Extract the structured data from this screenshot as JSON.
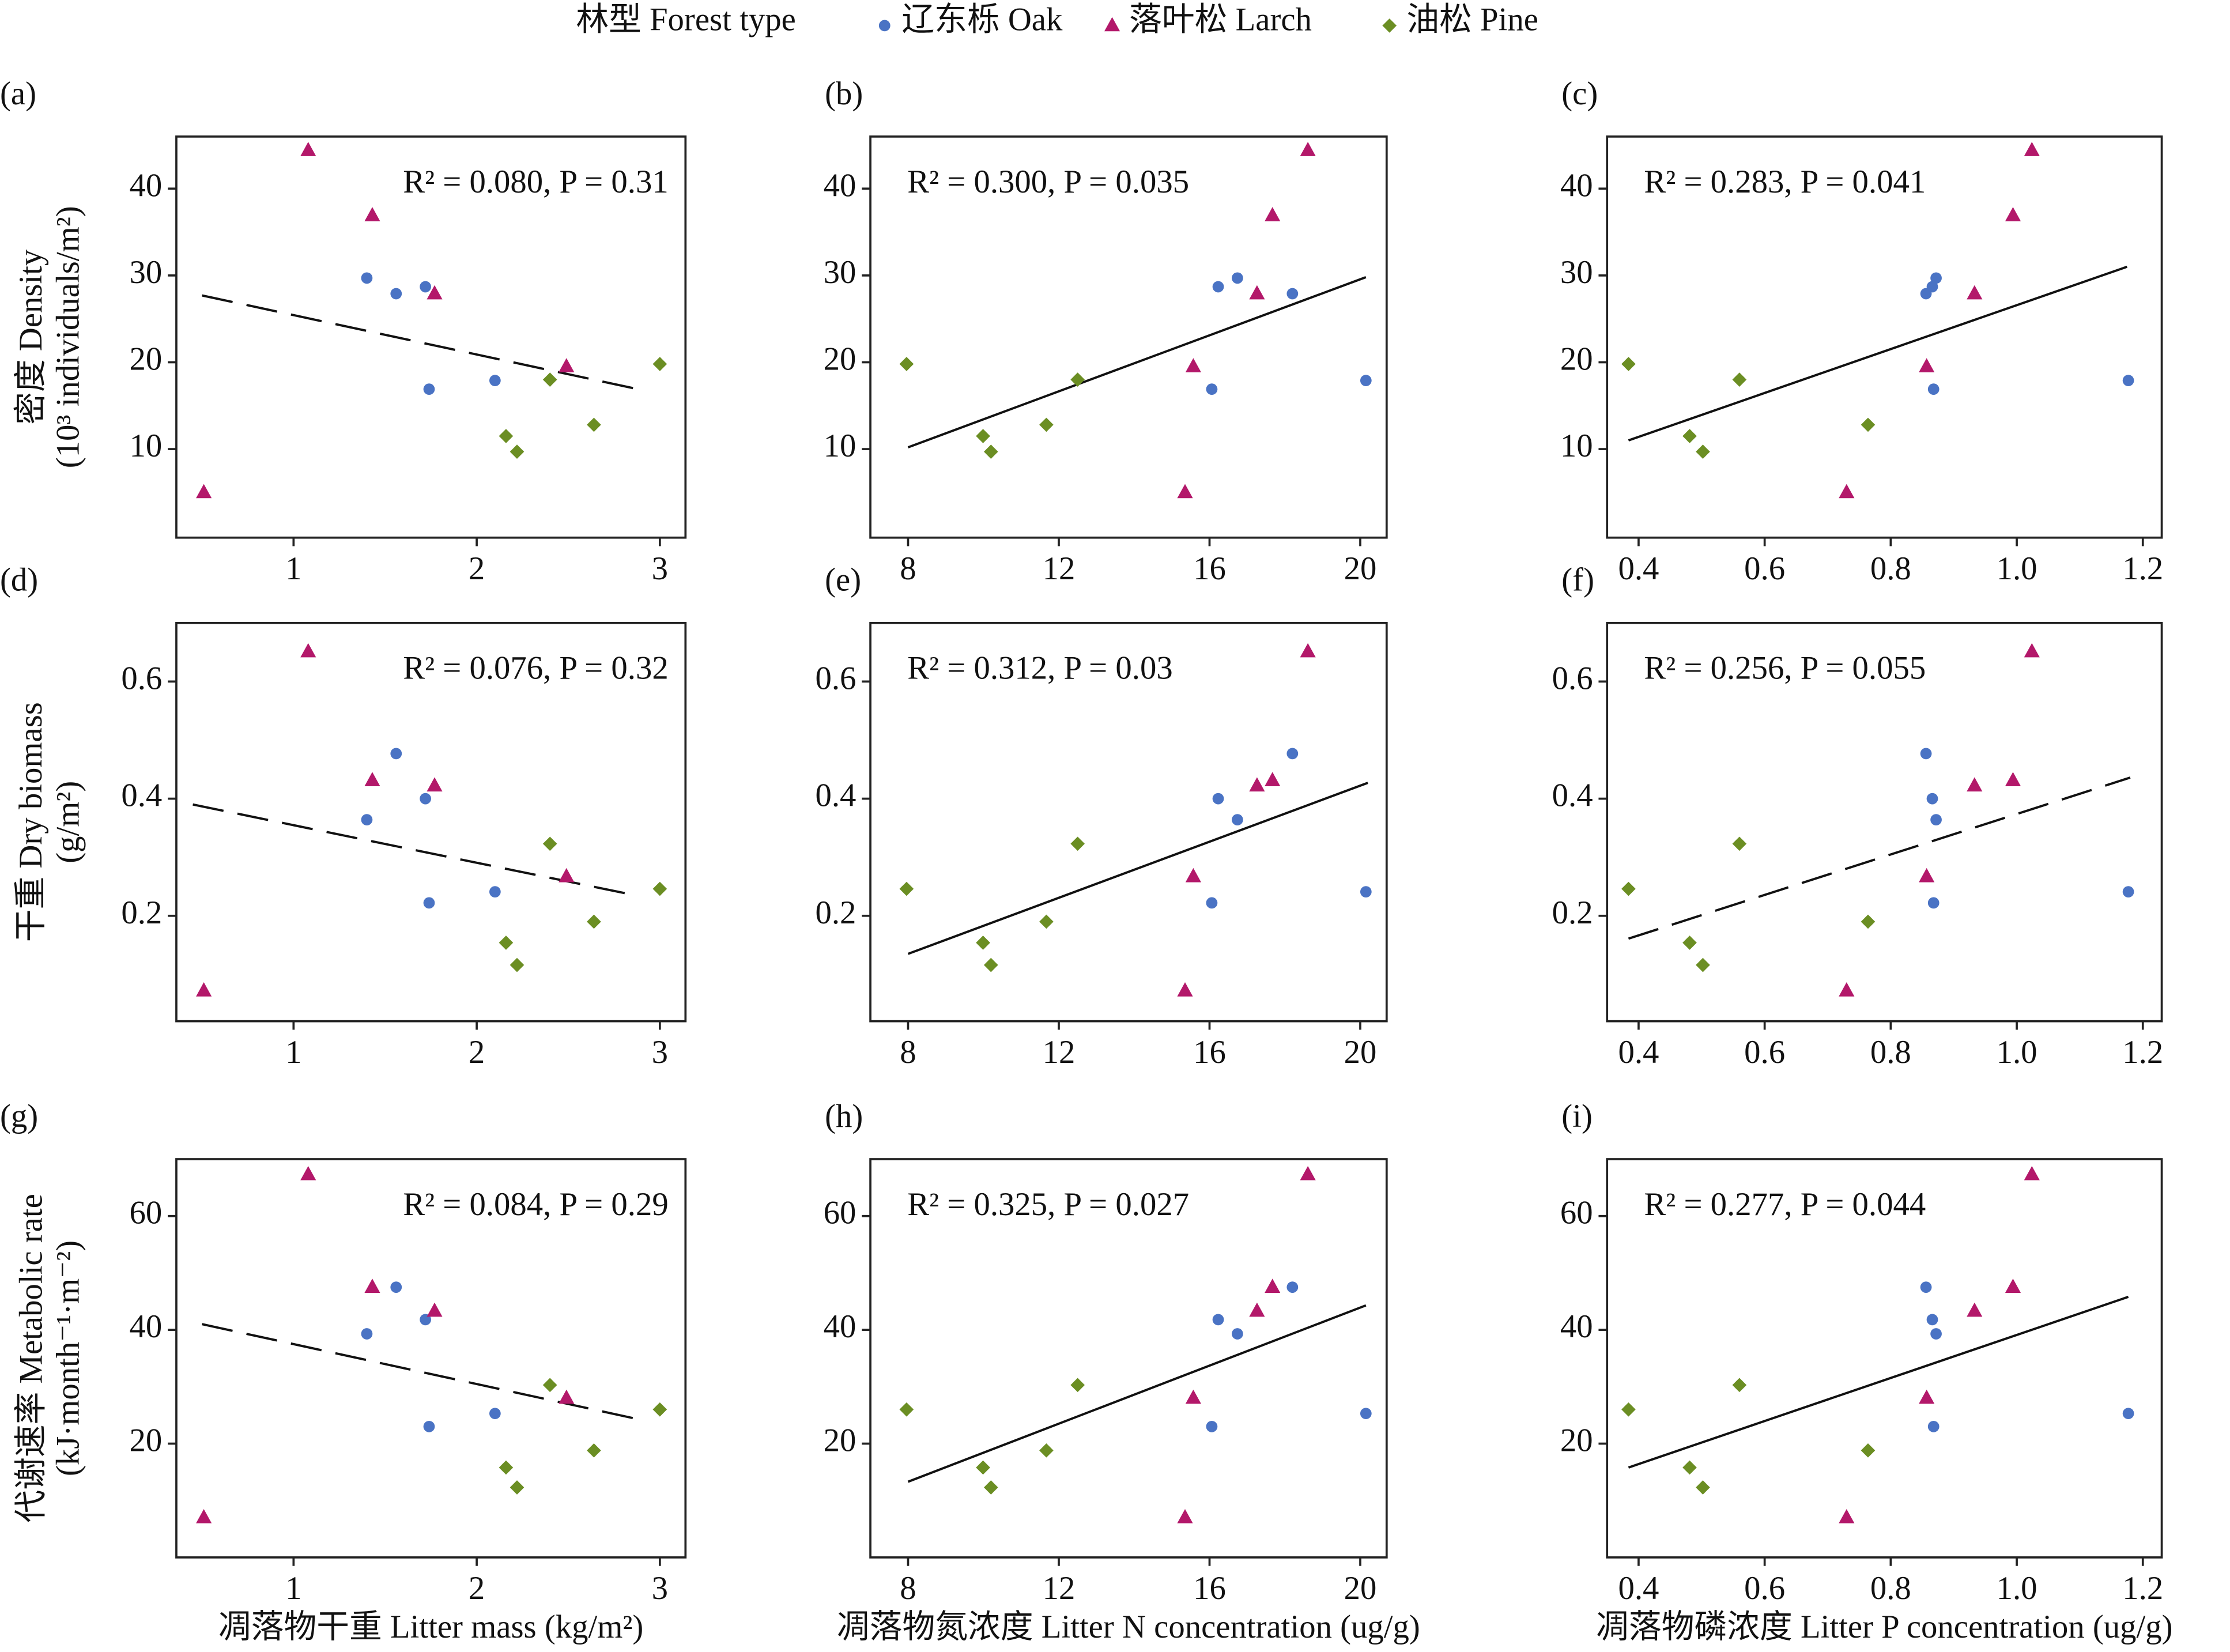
{
  "chart_data": [
    {
      "type": "scatter",
      "panel": "(a)",
      "legend_title": "林型 Forest type",
      "annotation": "R² = 0.080, P = 0.31",
      "ylabel": [
        "密度 Density",
        "(10³ individuals/m²)"
      ],
      "xlim": [
        0.36,
        3.14
      ],
      "ylim": [
        -0.2,
        46
      ],
      "xticks": [
        1,
        2,
        3
      ],
      "yticks": [
        10,
        20,
        30,
        40
      ],
      "series": [
        {
          "name": "辽东栎 Oak",
          "color": "#4a73c4",
          "marker": "circle",
          "x": [
            1.4,
            1.56,
            1.72,
            1.74,
            2.1
          ],
          "values": [
            29.7,
            27.9,
            28.7,
            16.9,
            17.9
          ]
        },
        {
          "name": "落叶松 Larch",
          "color": "#b3186a",
          "marker": "triangle",
          "x": [
            1.08,
            1.43,
            1.77,
            2.49,
            0.51
          ],
          "values": [
            44.4,
            36.9,
            27.9,
            19.5,
            5.0
          ]
        },
        {
          "name": "油松 Pine",
          "color": "#6b8e23",
          "marker": "diamond",
          "x": [
            3.0,
            2.4,
            2.16,
            2.22,
            2.64
          ],
          "values": [
            19.8,
            18.0,
            11.5,
            9.7,
            12.8
          ]
        }
      ],
      "fit": {
        "x": [
          0.5,
          2.88
        ],
        "y": [
          27.7,
          16.9
        ],
        "dashed": true
      }
    },
    {
      "type": "scatter",
      "panel": "(b)",
      "annotation": "R² = 0.300, P = 0.035",
      "xlim": [
        7.0,
        20.7
      ],
      "ylim": [
        -0.2,
        46
      ],
      "xticks": [
        8,
        12,
        16,
        20
      ],
      "yticks": [
        10,
        20,
        30,
        40
      ],
      "series": [
        {
          "name": "辽东栎 Oak",
          "color": "#4a73c4",
          "marker": "circle",
          "x": [
            16.74,
            18.2,
            16.23,
            16.06,
            20.15
          ],
          "values": [
            29.7,
            27.9,
            28.7,
            16.9,
            17.9
          ]
        },
        {
          "name": "落叶松 Larch",
          "color": "#b3186a",
          "marker": "triangle",
          "x": [
            18.61,
            17.67,
            17.26,
            15.57,
            15.35
          ],
          "values": [
            44.4,
            36.9,
            27.9,
            19.5,
            5.0
          ]
        },
        {
          "name": "油松 Pine",
          "color": "#6b8e23",
          "marker": "diamond",
          "x": [
            7.96,
            12.5,
            9.99,
            10.2,
            11.67
          ],
          "values": [
            19.8,
            18.0,
            11.5,
            9.7,
            12.8
          ]
        }
      ],
      "fit": {
        "x": [
          8.0,
          20.15
        ],
        "y": [
          10.2,
          29.8
        ],
        "dashed": false
      }
    },
    {
      "type": "scatter",
      "panel": "(c)",
      "annotation": "R² = 0.283, P = 0.041",
      "xlim": [
        0.35,
        1.23
      ],
      "ylim": [
        -0.2,
        46
      ],
      "xticks": [
        0.4,
        0.6,
        0.8,
        {
          "value": 1.0,
          "label": "1.0"
        },
        1.2
      ],
      "yticks": [
        10,
        20,
        30,
        40
      ],
      "series": [
        {
          "name": "辽东栎 Oak",
          "color": "#4a73c4",
          "marker": "circle",
          "x": [
            0.872,
            0.856,
            0.866,
            0.868,
            1.177
          ],
          "values": [
            29.7,
            27.9,
            28.7,
            16.9,
            17.9
          ]
        },
        {
          "name": "落叶松 Larch",
          "color": "#b3186a",
          "marker": "triangle",
          "x": [
            1.024,
            0.994,
            0.933,
            0.857,
            0.73
          ],
          "values": [
            44.4,
            36.9,
            27.9,
            19.5,
            5.0
          ]
        },
        {
          "name": "油松 Pine",
          "color": "#6b8e23",
          "marker": "diamond",
          "x": [
            0.384,
            0.56,
            0.481,
            0.502,
            0.764
          ],
          "values": [
            19.8,
            18.0,
            11.5,
            9.7,
            12.8
          ]
        }
      ],
      "fit": {
        "x": [
          0.384,
          1.175
        ],
        "y": [
          11.0,
          31.0
        ],
        "dashed": false
      }
    },
    {
      "type": "scatter",
      "panel": "(d)",
      "annotation": "R² = 0.076, P = 0.32",
      "ylabel": [
        "干重 Dry biomass",
        "(g/m²)"
      ],
      "xlim": [
        0.36,
        3.14
      ],
      "ylim": [
        0.02,
        0.7
      ],
      "xticks": [
        1,
        2,
        3
      ],
      "yticks": [
        0.2,
        0.4,
        0.6
      ],
      "series": [
        {
          "name": "辽东栎 Oak",
          "color": "#4a73c4",
          "marker": "circle",
          "x": [
            1.4,
            1.56,
            1.72,
            1.74,
            2.1
          ],
          "values": [
            0.364,
            0.477,
            0.4,
            0.222,
            0.241
          ]
        },
        {
          "name": "落叶松 Larch",
          "color": "#b3186a",
          "marker": "triangle",
          "x": [
            1.08,
            1.43,
            1.77,
            2.49,
            0.51
          ],
          "values": [
            0.651,
            0.431,
            0.422,
            0.267,
            0.072
          ]
        },
        {
          "name": "油松 Pine",
          "color": "#6b8e23",
          "marker": "diamond",
          "x": [
            3.0,
            2.4,
            2.16,
            2.22,
            2.64
          ],
          "values": [
            0.246,
            0.323,
            0.154,
            0.116,
            0.19
          ]
        }
      ],
      "fit": {
        "x": [
          0.45,
          2.85
        ],
        "y": [
          0.39,
          0.236
        ],
        "dashed": true
      }
    },
    {
      "type": "scatter",
      "panel": "(e)",
      "annotation": "R² = 0.312, P = 0.03",
      "xlim": [
        7.0,
        20.7
      ],
      "ylim": [
        0.02,
        0.7
      ],
      "xticks": [
        8,
        12,
        16,
        20
      ],
      "yticks": [
        0.2,
        0.4,
        0.6
      ],
      "series": [
        {
          "name": "辽东栎 Oak",
          "color": "#4a73c4",
          "marker": "circle",
          "x": [
            16.74,
            18.2,
            16.23,
            16.06,
            20.15
          ],
          "values": [
            0.364,
            0.477,
            0.4,
            0.222,
            0.241
          ]
        },
        {
          "name": "落叶松 Larch",
          "color": "#b3186a",
          "marker": "triangle",
          "x": [
            18.61,
            17.67,
            17.26,
            15.57,
            15.35
          ],
          "values": [
            0.651,
            0.431,
            0.422,
            0.267,
            0.072
          ]
        },
        {
          "name": "油松 Pine",
          "color": "#6b8e23",
          "marker": "diamond",
          "x": [
            7.96,
            12.5,
            9.99,
            10.2,
            11.67
          ],
          "values": [
            0.246,
            0.323,
            0.154,
            0.116,
            0.19
          ]
        }
      ],
      "fit": {
        "x": [
          8.0,
          20.2
        ],
        "y": [
          0.135,
          0.427
        ],
        "dashed": false
      }
    },
    {
      "type": "scatter",
      "panel": "(f)",
      "annotation": "R² = 0.256, P = 0.055",
      "xlim": [
        0.35,
        1.23
      ],
      "ylim": [
        0.02,
        0.7
      ],
      "xticks": [
        0.4,
        0.6,
        0.8,
        {
          "value": 1.0,
          "label": "1.0"
        },
        1.2
      ],
      "yticks": [
        0.2,
        0.4,
        0.6
      ],
      "series": [
        {
          "name": "辽东栎 Oak",
          "color": "#4a73c4",
          "marker": "circle",
          "x": [
            0.872,
            0.856,
            0.866,
            0.868,
            1.177
          ],
          "values": [
            0.364,
            0.477,
            0.4,
            0.222,
            0.241
          ]
        },
        {
          "name": "落叶松 Larch",
          "color": "#b3186a",
          "marker": "triangle",
          "x": [
            1.024,
            0.994,
            0.933,
            0.857,
            0.73
          ],
          "values": [
            0.651,
            0.431,
            0.422,
            0.267,
            0.072
          ]
        },
        {
          "name": "油松 Pine",
          "color": "#6b8e23",
          "marker": "diamond",
          "x": [
            0.384,
            0.56,
            0.481,
            0.502,
            0.764
          ],
          "values": [
            0.246,
            0.323,
            0.154,
            0.116,
            0.19
          ]
        }
      ],
      "fit": {
        "x": [
          0.384,
          1.18
        ],
        "y": [
          0.161,
          0.436
        ],
        "dashed": true
      }
    },
    {
      "type": "scatter",
      "panel": "(g)",
      "annotation": "R² = 0.084, P = 0.29",
      "ylabel": [
        "代谢速率 Metabolic rate",
        "(kJ·month⁻¹·m⁻²)"
      ],
      "xlabel": "凋落物干重 Litter mass (kg/m²)",
      "xlim": [
        0.36,
        3.14
      ],
      "ylim": [
        0,
        70
      ],
      "xticks": [
        1,
        2,
        3
      ],
      "yticks": [
        20,
        40,
        60
      ],
      "series": [
        {
          "name": "辽东栎 Oak",
          "color": "#4a73c4",
          "marker": "circle",
          "x": [
            1.4,
            1.56,
            1.72,
            1.74,
            2.1
          ],
          "values": [
            39.3,
            47.5,
            41.8,
            23.0,
            25.3
          ]
        },
        {
          "name": "落叶松 Larch",
          "color": "#b3186a",
          "marker": "triangle",
          "x": [
            1.08,
            1.43,
            1.77,
            2.49,
            0.51
          ],
          "values": [
            67.3,
            47.5,
            43.3,
            28.0,
            7.0
          ]
        },
        {
          "name": "油松 Pine",
          "color": "#6b8e23",
          "marker": "diamond",
          "x": [
            3.0,
            2.4,
            2.16,
            2.22,
            2.64
          ],
          "values": [
            26.0,
            30.3,
            15.8,
            12.3,
            18.8
          ]
        }
      ],
      "fit": {
        "x": [
          0.5,
          2.88
        ],
        "y": [
          41.0,
          24.3
        ],
        "dashed": true
      }
    },
    {
      "type": "scatter",
      "panel": "(h)",
      "annotation": "R² = 0.325, P = 0.027",
      "xlabel": "凋落物氮浓度 Litter N concentration (ug/g)",
      "xlim": [
        7.0,
        20.7
      ],
      "ylim": [
        0,
        70
      ],
      "xticks": [
        8,
        12,
        16,
        20
      ],
      "yticks": [
        20,
        40,
        60
      ],
      "series": [
        {
          "name": "辽东栎 Oak",
          "color": "#4a73c4",
          "marker": "circle",
          "x": [
            16.74,
            18.2,
            16.23,
            16.06,
            20.15
          ],
          "values": [
            39.3,
            47.5,
            41.8,
            23.0,
            25.3
          ]
        },
        {
          "name": "落叶松 Larch",
          "color": "#b3186a",
          "marker": "triangle",
          "x": [
            18.61,
            17.67,
            17.26,
            15.57,
            15.35
          ],
          "values": [
            67.3,
            47.5,
            43.3,
            28.0,
            7.0
          ]
        },
        {
          "name": "油松 Pine",
          "color": "#6b8e23",
          "marker": "diamond",
          "x": [
            7.96,
            12.5,
            9.99,
            10.2,
            11.67
          ],
          "values": [
            26.0,
            30.3,
            15.8,
            12.3,
            18.8
          ]
        }
      ],
      "fit": {
        "x": [
          8.0,
          20.15
        ],
        "y": [
          13.3,
          44.3
        ],
        "dashed": false
      }
    },
    {
      "type": "scatter",
      "panel": "(i)",
      "annotation": "R² = 0.277, P = 0.044",
      "xlabel": "凋落物磷浓度 Litter P concentration (ug/g)",
      "xlim": [
        0.35,
        1.23
      ],
      "ylim": [
        0,
        70
      ],
      "xticks": [
        0.4,
        0.6,
        0.8,
        {
          "value": 1.0,
          "label": "1.0"
        },
        1.2
      ],
      "yticks": [
        20,
        40,
        60
      ],
      "series": [
        {
          "name": "辽东栎 Oak",
          "color": "#4a73c4",
          "marker": "circle",
          "x": [
            0.872,
            0.856,
            0.866,
            0.868,
            1.177
          ],
          "values": [
            39.3,
            47.5,
            41.8,
            23.0,
            25.3
          ]
        },
        {
          "name": "落叶松 Larch",
          "color": "#b3186a",
          "marker": "triangle",
          "x": [
            1.024,
            0.994,
            0.933,
            0.857,
            0.73
          ],
          "values": [
            67.3,
            47.5,
            43.3,
            28.0,
            7.0
          ]
        },
        {
          "name": "油松 Pine",
          "color": "#6b8e23",
          "marker": "diamond",
          "x": [
            0.384,
            0.56,
            0.481,
            0.502,
            0.764
          ],
          "values": [
            26.0,
            30.3,
            15.8,
            12.3,
            18.8
          ]
        }
      ],
      "fit": {
        "x": [
          0.384,
          1.177
        ],
        "y": [
          15.8,
          45.8
        ],
        "dashed": false
      }
    }
  ]
}
